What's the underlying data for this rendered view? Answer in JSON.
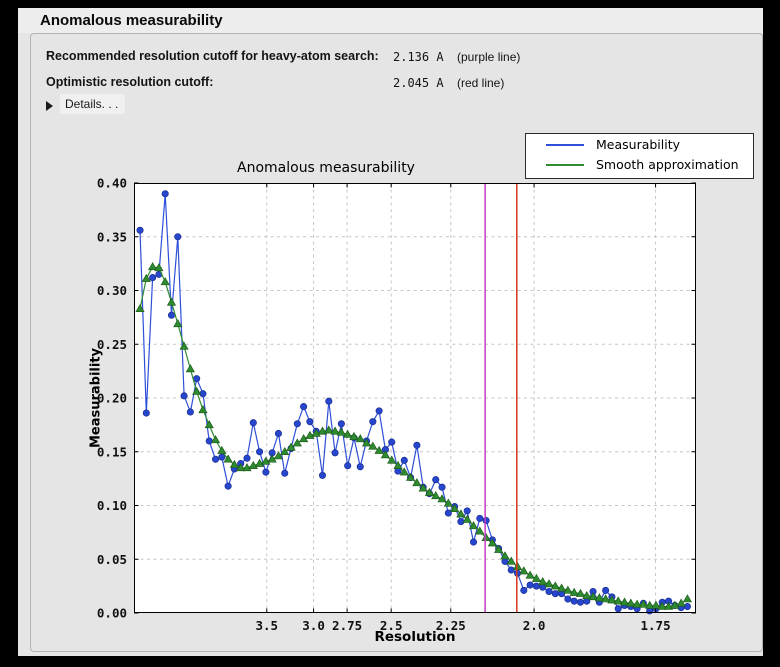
{
  "window": {
    "title": "Anomalous measurability"
  },
  "summary": {
    "rows": [
      {
        "label": "Recommended resolution cutoff for heavy-atom search:",
        "value": "2.136 A",
        "note": "(purple line)"
      },
      {
        "label": "Optimistic resolution cutoff:",
        "value": "2.045 A",
        "note": "(red line)"
      }
    ],
    "details_label": "Details. . ."
  },
  "chart_data": {
    "type": "line",
    "title": "Anomalous measurability",
    "xlabel": "Resolution",
    "ylabel": "Measurability",
    "ylim": [
      0,
      0.4
    ],
    "grid": true,
    "legend_position": "top-right",
    "x_axis_note": "resolution in Angstrom, descending, linear in 1/d^2",
    "x_scale": {
      "transform": "1/d^2",
      "smin": -0.002,
      "smax": 0.352
    },
    "x_ticks": [
      {
        "label": "3.5",
        "d": 3.5
      },
      {
        "label": "3.0",
        "d": 3.0
      },
      {
        "label": "2.75",
        "d": 2.75
      },
      {
        "label": "2.5",
        "d": 2.5
      },
      {
        "label": "2.25",
        "d": 2.25
      },
      {
        "label": "2.0",
        "d": 2.0
      },
      {
        "label": "1.75",
        "d": 1.75
      }
    ],
    "y_ticks": [
      {
        "label": "0.00",
        "v": 0.0
      },
      {
        "label": "0.05",
        "v": 0.05
      },
      {
        "label": "0.10",
        "v": 0.1
      },
      {
        "label": "0.15",
        "v": 0.15
      },
      {
        "label": "0.20",
        "v": 0.2
      },
      {
        "label": "0.25",
        "v": 0.25
      },
      {
        "label": "0.30",
        "v": 0.3
      },
      {
        "label": "0.35",
        "v": 0.35
      },
      {
        "label": "0.40",
        "v": 0.4
      }
    ],
    "vlines": [
      {
        "name": "recommended-cutoff",
        "d": 2.136,
        "color": "#c73bc7"
      },
      {
        "name": "optimistic-cutoff",
        "d": 2.045,
        "color": "#d9391b"
      }
    ],
    "x_inv_d2": {
      "start": 0.0018,
      "step": 0.0039632,
      "count": 88
    },
    "grid_color": "#c6c6c6",
    "series": [
      {
        "name": "Measurability",
        "color": "#2e4fd8",
        "marker": "circle",
        "marker_fill": "#2646cd",
        "marker_edge": "#1c2f8f",
        "values": [
          0.356,
          0.186,
          0.312,
          0.315,
          0.39,
          0.277,
          0.35,
          0.202,
          0.187,
          0.218,
          0.204,
          0.16,
          0.143,
          0.145,
          0.118,
          0.134,
          0.139,
          0.144,
          0.177,
          0.15,
          0.131,
          0.149,
          0.167,
          0.13,
          0.153,
          0.176,
          0.192,
          0.178,
          0.169,
          0.128,
          0.197,
          0.149,
          0.176,
          0.137,
          0.163,
          0.136,
          0.16,
          0.178,
          0.188,
          0.152,
          0.159,
          0.132,
          0.142,
          0.126,
          0.156,
          0.117,
          0.111,
          0.124,
          0.117,
          0.093,
          0.099,
          0.085,
          0.095,
          0.066,
          0.088,
          0.086,
          0.068,
          0.06,
          0.048,
          0.04,
          0.037,
          0.021,
          0.026,
          0.025,
          0.024,
          0.02,
          0.018,
          0.018,
          0.013,
          0.011,
          0.01,
          0.011,
          0.02,
          0.01,
          0.021,
          0.015,
          0.004,
          0.007,
          0.006,
          0.004,
          0.009,
          0.002,
          0.004,
          0.01,
          0.011,
          0.007,
          0.005,
          0.006
        ]
      },
      {
        "name": "Smooth approximation",
        "color": "#2f8b2f",
        "marker": "triangle",
        "marker_fill": "#2f8b2f",
        "marker_edge": "#1d5c1d",
        "values": [
          0.283,
          0.311,
          0.322,
          0.321,
          0.308,
          0.289,
          0.269,
          0.248,
          0.227,
          0.206,
          0.189,
          0.175,
          0.161,
          0.151,
          0.143,
          0.138,
          0.135,
          0.135,
          0.137,
          0.139,
          0.141,
          0.143,
          0.146,
          0.15,
          0.154,
          0.158,
          0.162,
          0.165,
          0.167,
          0.169,
          0.17,
          0.169,
          0.168,
          0.166,
          0.164,
          0.162,
          0.158,
          0.155,
          0.151,
          0.147,
          0.142,
          0.137,
          0.131,
          0.126,
          0.121,
          0.116,
          0.112,
          0.109,
          0.106,
          0.102,
          0.097,
          0.092,
          0.087,
          0.081,
          0.076,
          0.07,
          0.065,
          0.059,
          0.053,
          0.048,
          0.043,
          0.039,
          0.035,
          0.032,
          0.029,
          0.027,
          0.025,
          0.023,
          0.021,
          0.019,
          0.018,
          0.016,
          0.015,
          0.014,
          0.013,
          0.012,
          0.011,
          0.01,
          0.009,
          0.008,
          0.008,
          0.007,
          0.007,
          0.006,
          0.006,
          0.007,
          0.009,
          0.013
        ]
      }
    ]
  }
}
